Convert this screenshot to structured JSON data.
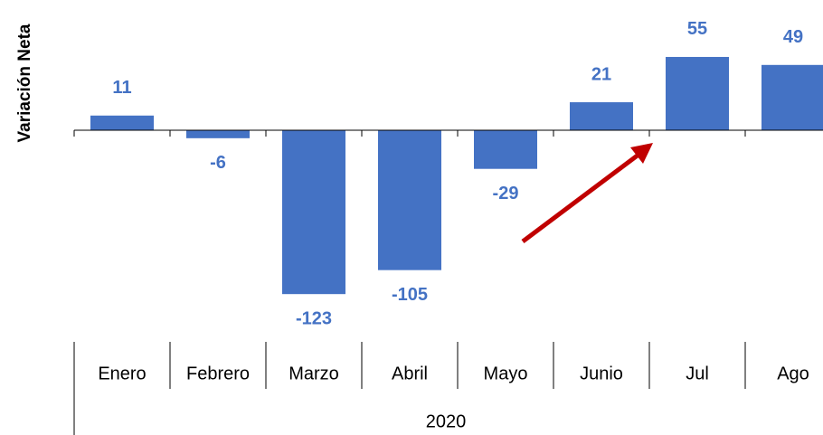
{
  "chart_data": {
    "type": "bar",
    "y_label": "Variación Neta",
    "categories": [
      "Enero",
      "Febrero",
      "Marzo",
      "Abril",
      "Mayo",
      "Junio",
      "Jul",
      "Ago"
    ],
    "group_label": "2020",
    "values": [
      11,
      -6,
      -123,
      -105,
      -29,
      21,
      55,
      49
    ],
    "color": "#4472c4",
    "ylim": [
      -130,
      60
    ]
  }
}
